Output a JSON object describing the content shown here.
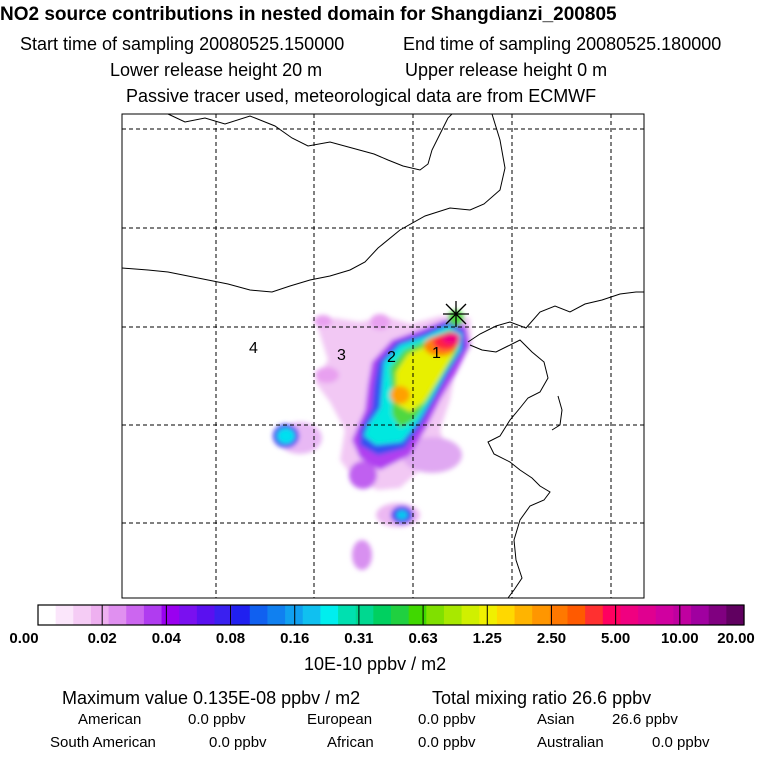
{
  "header": {
    "title": "NO2 source contributions in nested domain for Shangdianzi_200805",
    "start_label": "Start time of sampling 20080525.150000",
    "end_label": "End time of sampling 20080525.180000",
    "lower_label": "Lower release height   20 m",
    "upper_label": "Upper release height    0 m",
    "note": "Passive tracer used, meteorological data are from ECMWF"
  },
  "chart_data": {
    "type": "heatmap",
    "title": "NO2 source contributions in nested domain for Shangdianzi_200805",
    "receptor_marker": "Shangdianzi",
    "region_labels": [
      "1",
      "2",
      "3",
      "4"
    ],
    "colorbar": {
      "ticks": [
        "0.00",
        "0.02",
        "0.04",
        "0.08",
        "0.16",
        "0.31",
        "0.63",
        "1.25",
        "2.50",
        "5.00",
        "10.00",
        "20.00"
      ],
      "unit_label": "10E-10 ppbv / m2",
      "colors": [
        "#ffffff",
        "#fbe6fb",
        "#f5ccf5",
        "#eeb0f0",
        "#e090f0",
        "#cc66f0",
        "#b03cf0",
        "#9a00f0",
        "#7a10f0",
        "#5a10f0",
        "#3a20f0",
        "#2020f0",
        "#1060f0",
        "#1080f0",
        "#10a0f0",
        "#10c0f0",
        "#00eeee",
        "#00e0b0",
        "#00d890",
        "#00d060",
        "#20d040",
        "#40d800",
        "#80e000",
        "#a8e800",
        "#d0f000",
        "#f0f000",
        "#ffd800",
        "#ffb400",
        "#ff9600",
        "#ff7800",
        "#ff5a00",
        "#ff3030",
        "#ff0060",
        "#f00080",
        "#e00090",
        "#d000a0",
        "#c000a0",
        "#a000a0",
        "#800080",
        "#600060"
      ]
    }
  },
  "stats": {
    "max_label": "Maximum value  0.135E-08 ppbv / m2",
    "total_label": "Total mixing ratio       26.6 ppbv",
    "regions": [
      {
        "name": "American",
        "value": "0.0 ppbv"
      },
      {
        "name": "European",
        "value": "0.0 ppbv"
      },
      {
        "name": "Asian",
        "value": "26.6 ppbv"
      },
      {
        "name": "South American",
        "value": "0.0 ppbv"
      },
      {
        "name": "African",
        "value": "0.0 ppbv"
      },
      {
        "name": "Australian",
        "value": "0.0 ppbv"
      }
    ]
  }
}
